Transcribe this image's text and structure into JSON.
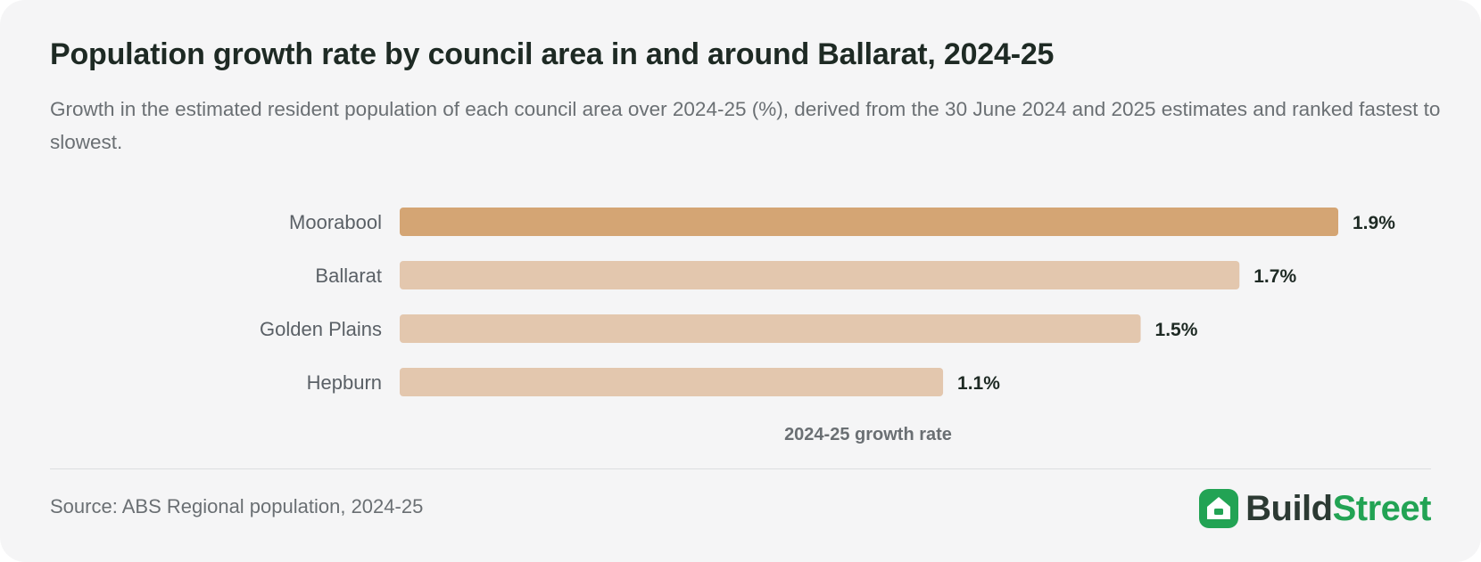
{
  "header": {
    "title": "Population growth rate by council area in and around Ballarat, 2024-25",
    "subtitle": "Growth in the estimated resident population of each council area over 2024-25 (%), derived from the 30 June 2024 and 2025 estimates and ranked fastest to slowest."
  },
  "chart_data": {
    "type": "bar",
    "orientation": "horizontal",
    "categories": [
      "Moorabool",
      "Ballarat",
      "Golden Plains",
      "Hepburn"
    ],
    "values": [
      1.9,
      1.7,
      1.5,
      1.1
    ],
    "value_labels": [
      "1.9%",
      "1.7%",
      "1.5%",
      "1.1%"
    ],
    "xlabel": "2024-25 growth rate",
    "ylabel": "",
    "xlim": [
      0,
      1.9
    ],
    "grid": false,
    "highlight_color": "#d4a574",
    "bar_color": "#e3c7ae"
  },
  "footer": {
    "source": "Source: ABS Regional population, 2024-25",
    "logo_build": "Build",
    "logo_street": "Street",
    "logo_icon": "house-icon"
  }
}
